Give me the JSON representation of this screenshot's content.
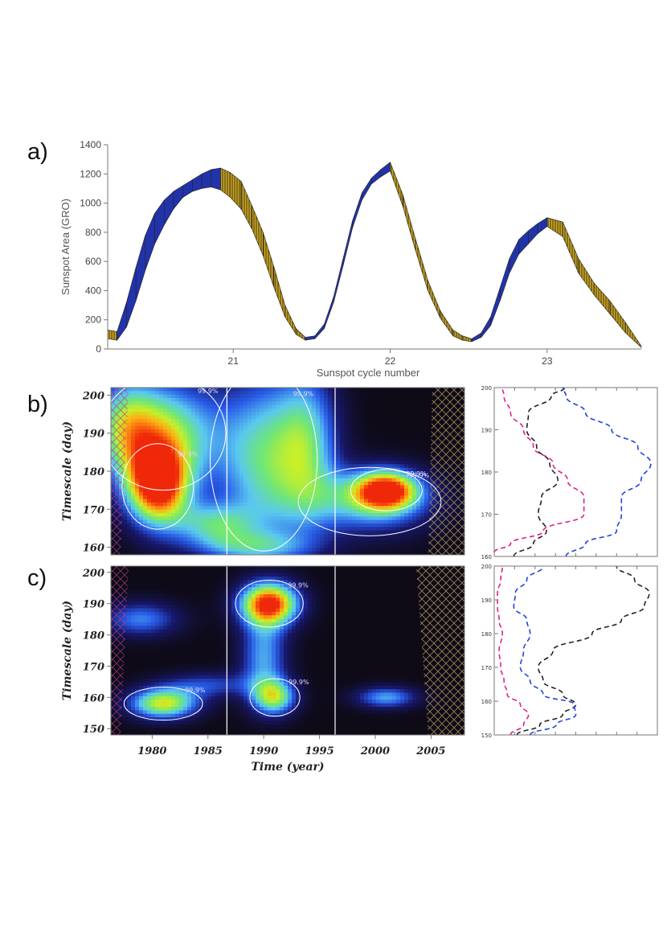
{
  "colors": {
    "rising": "#2233aa",
    "declining": "#c8a628",
    "hatch": "#3a2a00",
    "wavelet_bg": "#0a0a14",
    "contour": "#ffffff",
    "dash_black": "#222222",
    "dash_blue": "#2244dd",
    "dash_magenta": "#e0208a"
  },
  "panel_labels": [
    "a)",
    "b)",
    "c)"
  ],
  "chart_data": [
    {
      "type": "area",
      "panel": "a",
      "title": "",
      "xlabel": "Sunspot cycle number",
      "ylabel": "Sunspot Area (GRO)",
      "xlim": [
        20.2,
        23.6
      ],
      "ylim": [
        0,
        1400
      ],
      "yticks": [
        0,
        200,
        400,
        600,
        800,
        1000,
        1200,
        1400
      ],
      "xticks": [
        21,
        22,
        23
      ],
      "series": [
        {
          "name": "upper",
          "x": [
            20.2,
            20.26,
            20.32,
            20.38,
            20.44,
            20.5,
            20.56,
            20.62,
            20.68,
            20.74,
            20.8,
            20.86,
            20.92,
            20.98,
            21.05,
            21.12,
            21.19,
            21.26,
            21.33,
            21.4,
            21.46,
            21.52,
            21.58,
            21.64,
            21.7,
            21.76,
            21.82,
            21.88,
            21.94,
            22.0,
            22.08,
            22.16,
            22.24,
            22.32,
            22.4,
            22.46,
            22.52,
            22.58,
            22.64,
            22.7,
            22.76,
            22.82,
            22.88,
            22.94,
            23.0,
            23.1,
            23.2,
            23.3,
            23.4,
            23.5,
            23.6
          ],
          "values": [
            130,
            120,
            320,
            560,
            780,
            930,
            1020,
            1080,
            1120,
            1160,
            1200,
            1230,
            1240,
            1210,
            1150,
            980,
            800,
            560,
            300,
            140,
            80,
            90,
            170,
            360,
            620,
            880,
            1070,
            1170,
            1230,
            1280,
            1060,
            760,
            470,
            260,
            130,
            90,
            70,
            110,
            220,
            420,
            620,
            750,
            810,
            860,
            900,
            870,
            620,
            450,
            330,
            180,
            20
          ]
        },
        {
          "name": "lower",
          "x": [
            20.2,
            20.26,
            20.32,
            20.38,
            20.44,
            20.5,
            20.56,
            20.62,
            20.68,
            20.74,
            20.8,
            20.86,
            20.92,
            20.98,
            21.05,
            21.12,
            21.19,
            21.26,
            21.33,
            21.4,
            21.46,
            21.52,
            21.58,
            21.64,
            21.7,
            21.76,
            21.82,
            21.88,
            21.94,
            22.0,
            22.08,
            22.16,
            22.24,
            22.32,
            22.4,
            22.46,
            22.52,
            22.58,
            22.64,
            22.7,
            22.76,
            22.82,
            22.88,
            22.94,
            23.0,
            23.1,
            23.2,
            23.3,
            23.4,
            23.5,
            23.6
          ],
          "values": [
            70,
            60,
            150,
            330,
            540,
            720,
            850,
            960,
            1040,
            1080,
            1100,
            1110,
            1090,
            1040,
            960,
            820,
            640,
            420,
            220,
            100,
            60,
            70,
            140,
            320,
            570,
            830,
            1020,
            1130,
            1180,
            1220,
            980,
            680,
            400,
            210,
            90,
            60,
            50,
            80,
            160,
            330,
            520,
            650,
            720,
            790,
            840,
            770,
            520,
            370,
            240,
            110,
            10
          ]
        }
      ],
      "fill_rule": "rising phase blue, declining phase yellow with vertical hatch"
    },
    {
      "type": "heatmap",
      "panel": "b",
      "xlabel": "",
      "ylabel": "Timescale (day)",
      "xlim": [
        1976.3,
        2008
      ],
      "ylim": [
        158,
        202
      ],
      "yticks": [
        160,
        170,
        180,
        190,
        200
      ],
      "cycle_lines": [
        1986.7,
        1996.4
      ],
      "contour_label": "99.9%",
      "hotspots": [
        {
          "x": 1980.5,
          "y": 176,
          "amp": 1.0,
          "sx": 2.0,
          "sy": 7.5
        },
        {
          "x": 2001,
          "y": 175,
          "amp": 0.85,
          "sx": 2.0,
          "sy": 3.6
        },
        {
          "x": 1981,
          "y": 190,
          "amp": 0.65,
          "sx": 3.5,
          "sy": 10
        },
        {
          "x": 1990,
          "y": 183,
          "amp": 0.55,
          "sx": 3.0,
          "sy": 16
        },
        {
          "x": 1994,
          "y": 187,
          "amp": 0.45,
          "sx": 2.0,
          "sy": 14
        },
        {
          "x": 1985.5,
          "y": 166,
          "amp": 0.45,
          "sx": 2.5,
          "sy": 4
        },
        {
          "x": 1999.5,
          "y": 172,
          "amp": 0.5,
          "sx": 4.0,
          "sy": 6
        },
        {
          "x": 1977.5,
          "y": 192,
          "amp": 0.4,
          "sx": 2.0,
          "sy": 9
        },
        {
          "x": 1989,
          "y": 160,
          "amp": 0.35,
          "sx": 4.0,
          "sy": 3
        }
      ]
    },
    {
      "type": "heatmap",
      "panel": "c",
      "xlabel": "Time (year)",
      "ylabel": "Timescale (day)",
      "xlim": [
        1976.3,
        2008
      ],
      "ylim": [
        148,
        202
      ],
      "yticks": [
        150,
        160,
        170,
        180,
        190,
        200
      ],
      "xticks": [
        1980,
        1985,
        1990,
        1995,
        2000,
        2005
      ],
      "cycle_lines": [
        1986.7,
        1996.4
      ],
      "contour_label": "99.9%",
      "hotspots": [
        {
          "x": 1990.5,
          "y": 190,
          "amp": 1.0,
          "sx": 1.9,
          "sy": 5
        },
        {
          "x": 1981,
          "y": 158,
          "amp": 0.75,
          "sx": 2.2,
          "sy": 3.5
        },
        {
          "x": 1991,
          "y": 160,
          "amp": 0.6,
          "sx": 1.4,
          "sy": 4
        },
        {
          "x": 2001,
          "y": 160,
          "amp": 0.45,
          "sx": 2.0,
          "sy": 2.5
        },
        {
          "x": 1990,
          "y": 173,
          "amp": 0.45,
          "sx": 1.5,
          "sy": 10
        },
        {
          "x": 1979,
          "y": 185,
          "amp": 0.4,
          "sx": 2.5,
          "sy": 4
        },
        {
          "x": 1985,
          "y": 164,
          "amp": 0.3,
          "sx": 3.0,
          "sy": 3
        }
      ]
    },
    {
      "type": "line",
      "panel": "b-side",
      "ylim": [
        160,
        200
      ],
      "yticks": [
        160,
        170,
        180,
        190,
        200
      ],
      "series": [
        {
          "name": "black",
          "y": [
            160,
            163,
            166,
            170,
            174,
            178,
            182,
            186,
            190,
            194,
            198,
            200
          ],
          "values": [
            0.12,
            0.24,
            0.32,
            0.27,
            0.29,
            0.39,
            0.34,
            0.26,
            0.2,
            0.21,
            0.35,
            0.43
          ]
        },
        {
          "name": "blue",
          "y": [
            160,
            163,
            166,
            170,
            174,
            178,
            182,
            186,
            190,
            194,
            198,
            200
          ],
          "values": [
            0.44,
            0.56,
            0.75,
            0.78,
            0.78,
            0.9,
            0.96,
            0.88,
            0.72,
            0.56,
            0.44,
            0.42
          ]
        },
        {
          "name": "magenta",
          "y": [
            161,
            163,
            166,
            170,
            174,
            178,
            182,
            186,
            190,
            194,
            198,
            200
          ],
          "values": [
            0.0,
            0.1,
            0.3,
            0.55,
            0.55,
            0.45,
            0.36,
            0.24,
            0.18,
            0.1,
            0.06,
            0.05
          ]
        }
      ]
    },
    {
      "type": "line",
      "panel": "c-side",
      "ylim": [
        150,
        200
      ],
      "yticks": [
        150,
        160,
        170,
        180,
        190,
        200
      ],
      "series": [
        {
          "name": "black",
          "y": [
            150,
            153,
            156,
            159,
            162,
            166,
            170,
            175,
            180,
            184,
            188,
            192,
            196,
            200
          ],
          "values": [
            0.14,
            0.28,
            0.42,
            0.5,
            0.42,
            0.3,
            0.27,
            0.36,
            0.6,
            0.78,
            0.92,
            0.95,
            0.86,
            0.75
          ]
        },
        {
          "name": "blue",
          "y": [
            150,
            153,
            156,
            159,
            162,
            166,
            170,
            175,
            180,
            184,
            188,
            192,
            196,
            200
          ],
          "values": [
            0.22,
            0.38,
            0.5,
            0.49,
            0.3,
            0.22,
            0.16,
            0.18,
            0.22,
            0.2,
            0.12,
            0.13,
            0.2,
            0.3
          ]
        },
        {
          "name": "magenta",
          "y": [
            150,
            153,
            156,
            159,
            162,
            166,
            170,
            175,
            180,
            184,
            188,
            192,
            196,
            200
          ],
          "values": [
            0.1,
            0.18,
            0.21,
            0.16,
            0.08,
            0.06,
            0.04,
            0.03,
            0.05,
            0.03,
            0.02,
            0.02,
            0.04,
            0.05
          ]
        }
      ]
    }
  ]
}
